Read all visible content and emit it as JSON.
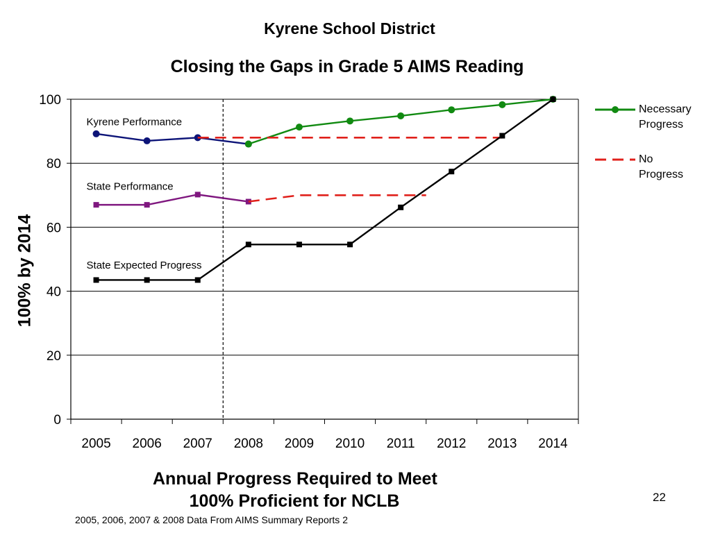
{
  "slide": {
    "title": "Kyrene School District",
    "page_number": "22",
    "footnote": "2005, 2006, 2007 & 2008 Data From AIMS Summary Reports 2"
  },
  "legend": [
    {
      "label_line1": "Necessary",
      "label_line2": "Progress",
      "color": "#118A11",
      "style": "solid-circle"
    },
    {
      "label_line1": "No",
      "label_line2": "Progress",
      "color": "#E0201B",
      "style": "dashed"
    }
  ],
  "chart_data": {
    "type": "line",
    "title": "Closing the Gaps in Grade 5 AIMS Reading",
    "xlabel_line1": "Annual Progress Required to Meet",
    "xlabel_line2": "100% Proficient for NCLB",
    "ylabel": "100% by 2014",
    "categories": [
      "2005",
      "2006",
      "2007",
      "2008",
      "2009",
      "2010",
      "2011",
      "2012",
      "2013",
      "2014"
    ],
    "ylim": [
      0,
      100
    ],
    "yticks": [
      0,
      20,
      40,
      60,
      80,
      100
    ],
    "grid": true,
    "legend_position": "right",
    "vertical_marker_year": "2008",
    "series": [
      {
        "name": "Kyrene Performance",
        "color": "#0D1478",
        "marker": "circle",
        "dash": false,
        "x": [
          "2005",
          "2006",
          "2007",
          "2008"
        ],
        "values": [
          89.2,
          87.0,
          88.0,
          86.0
        ]
      },
      {
        "name": "Necessary Progress",
        "color": "#118A11",
        "marker": "circle",
        "dash": false,
        "x": [
          "2008",
          "2009",
          "2010",
          "2011",
          "2012",
          "2013",
          "2014"
        ],
        "values": [
          86.0,
          91.3,
          93.2,
          94.8,
          96.7,
          98.3,
          100
        ]
      },
      {
        "name": "No Progress",
        "color": "#E0201B",
        "marker": "none",
        "dash": true,
        "x": [
          "2007",
          "2008",
          "2009",
          "2010",
          "2011",
          "2012",
          "2013"
        ],
        "values": [
          88.0,
          88.0,
          88.0,
          88.0,
          88.0,
          88.0,
          88.0
        ]
      },
      {
        "name": "State Performance",
        "color": "#7F177F",
        "marker": "square",
        "dash": false,
        "x": [
          "2005",
          "2006",
          "2007",
          "2008"
        ],
        "values": [
          67.0,
          67.0,
          70.2,
          68.0
        ]
      },
      {
        "name": "No Progress",
        "color": "#E0201B",
        "marker": "none",
        "dash": true,
        "x": [
          "2008",
          "2009",
          "2010",
          "2011",
          "2011.5"
        ],
        "values": [
          68.0,
          70.0,
          70.0,
          70.0,
          70.0
        ]
      },
      {
        "name": "State Expected Progress",
        "color": "#000000",
        "marker": "square",
        "dash": false,
        "x": [
          "2005",
          "2006",
          "2007",
          "2008",
          "2009",
          "2010",
          "2011",
          "2012",
          "2013",
          "2014"
        ],
        "values": [
          43.5,
          43.5,
          43.5,
          54.6,
          54.6,
          54.6,
          66.2,
          77.4,
          88.6,
          100
        ]
      }
    ],
    "annotations": [
      {
        "text": "Kyrene Performance",
        "x": "2005",
        "y": 93
      },
      {
        "text": "State Performance",
        "x": "2005",
        "y": 72.8
      },
      {
        "text": "State Expected Progress",
        "x": "2005",
        "y": 48.2
      }
    ]
  }
}
